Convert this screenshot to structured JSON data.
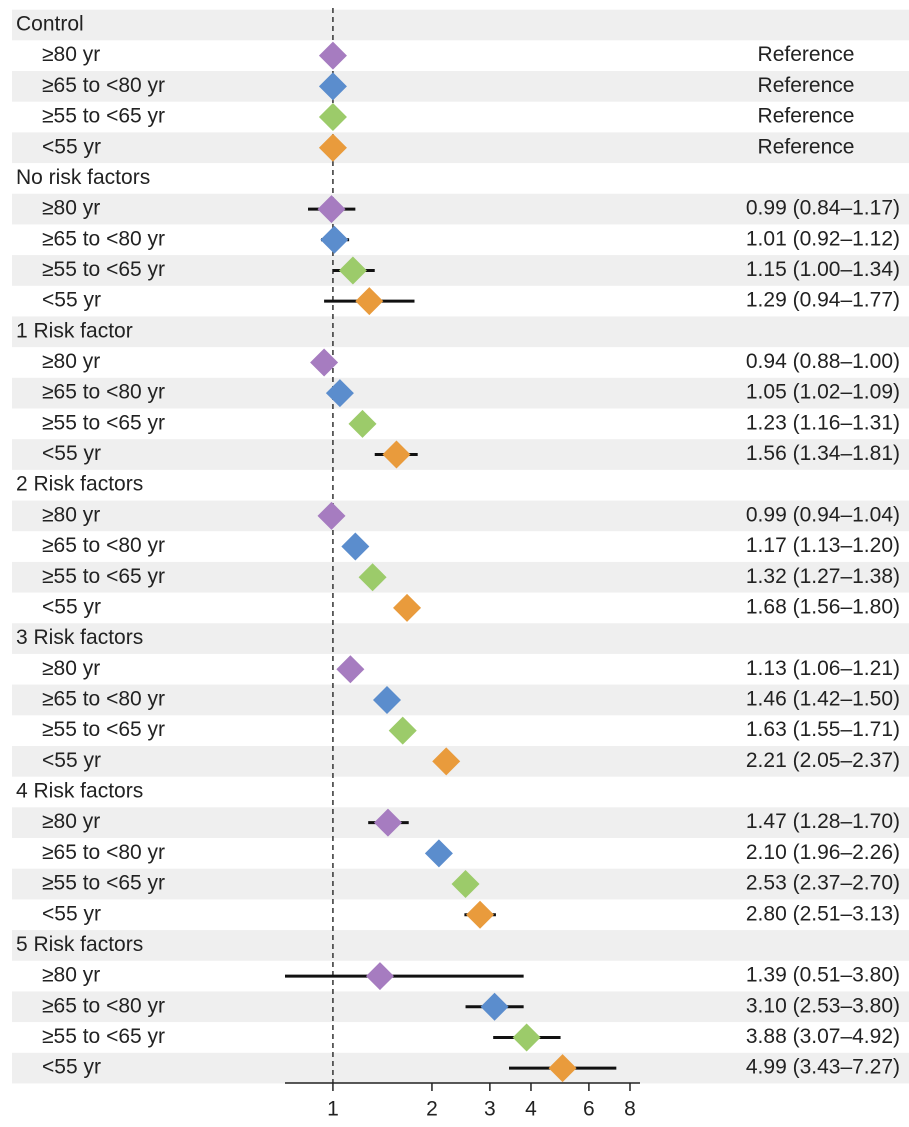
{
  "chart_data": {
    "type": "forest",
    "xscale": "log",
    "xlim": [
      0.715,
      8.58
    ],
    "xticks": [
      1,
      2,
      3,
      4,
      6,
      8
    ],
    "reference_line": 1,
    "colors": [
      "#a67cc0",
      "#5b8dcd",
      "#9ccb6a",
      "#e99b3c"
    ],
    "groups": [
      {
        "name": "Control",
        "categories": [
          "≥80 yr",
          "≥65 to <80 yr",
          "≥55 to <65 yr",
          "<55 yr"
        ],
        "values": [
          1,
          1,
          1,
          1
        ],
        "lower": [
          null,
          null,
          null,
          null
        ],
        "upper": [
          null,
          null,
          null,
          null
        ],
        "value_labels": [
          "Reference",
          "Reference",
          "Reference",
          "Reference"
        ]
      },
      {
        "name": "No risk factors",
        "categories": [
          "≥80 yr",
          "≥65 to <80 yr",
          "≥55 to <65 yr",
          "<55 yr"
        ],
        "values": [
          0.99,
          1.01,
          1.15,
          1.29
        ],
        "lower": [
          0.84,
          0.92,
          1.0,
          0.94
        ],
        "upper": [
          1.17,
          1.12,
          1.34,
          1.77
        ],
        "value_labels": [
          "0.99 (0.84–1.17)",
          "1.01 (0.92–1.12)",
          "1.15 (1.00–1.34)",
          "1.29 (0.94–1.77)"
        ]
      },
      {
        "name": "1 Risk factor",
        "categories": [
          "≥80 yr",
          "≥65 to <80 yr",
          "≥55 to <65 yr",
          "<55 yr"
        ],
        "values": [
          0.94,
          1.05,
          1.23,
          1.56
        ],
        "lower": [
          0.88,
          1.02,
          1.16,
          1.34
        ],
        "upper": [
          1.0,
          1.09,
          1.31,
          1.81
        ],
        "value_labels": [
          "0.94 (0.88–1.00)",
          "1.05 (1.02–1.09)",
          "1.23 (1.16–1.31)",
          "1.56 (1.34–1.81)"
        ]
      },
      {
        "name": "2 Risk factors",
        "categories": [
          "≥80 yr",
          "≥65 to <80 yr",
          "≥55 to <65 yr",
          "<55 yr"
        ],
        "values": [
          0.99,
          1.17,
          1.32,
          1.68
        ],
        "lower": [
          0.94,
          1.13,
          1.27,
          1.56
        ],
        "upper": [
          1.04,
          1.2,
          1.38,
          1.8
        ],
        "value_labels": [
          "0.99 (0.94–1.04)",
          "1.17 (1.13–1.20)",
          "1.32 (1.27–1.38)",
          "1.68 (1.56–1.80)"
        ]
      },
      {
        "name": "3 Risk factors",
        "categories": [
          "≥80 yr",
          "≥65 to <80 yr",
          "≥55 to <65 yr",
          "<55 yr"
        ],
        "values": [
          1.13,
          1.46,
          1.63,
          2.21
        ],
        "lower": [
          1.06,
          1.42,
          1.55,
          2.05
        ],
        "upper": [
          1.21,
          1.5,
          1.71,
          2.37
        ],
        "value_labels": [
          "1.13 (1.06–1.21)",
          "1.46 (1.42–1.50)",
          "1.63 (1.55–1.71)",
          "2.21 (2.05–2.37)"
        ]
      },
      {
        "name": "4 Risk factors",
        "categories": [
          "≥80 yr",
          "≥65 to <80 yr",
          "≥55 to <65 yr",
          "<55 yr"
        ],
        "values": [
          1.47,
          2.1,
          2.53,
          2.8
        ],
        "lower": [
          1.28,
          1.96,
          2.37,
          2.51
        ],
        "upper": [
          1.7,
          2.26,
          2.7,
          3.13
        ],
        "value_labels": [
          "1.47 (1.28–1.70)",
          "2.10 (1.96–2.26)",
          "2.53 (2.37–2.70)",
          "2.80 (2.51–3.13)"
        ]
      },
      {
        "name": "5 Risk factors",
        "categories": [
          "≥80 yr",
          "≥65 to <80 yr",
          "≥55 to <65 yr",
          "<55 yr"
        ],
        "values": [
          1.39,
          3.1,
          3.88,
          4.99
        ],
        "lower": [
          0.51,
          2.53,
          3.07,
          3.43
        ],
        "upper": [
          3.8,
          3.8,
          4.92,
          7.27
        ],
        "value_labels": [
          "1.39 (0.51–3.80)",
          "3.10 (2.53–3.80)",
          "3.88 (3.07–4.92)",
          "4.99 (3.43–7.27)"
        ]
      }
    ]
  }
}
